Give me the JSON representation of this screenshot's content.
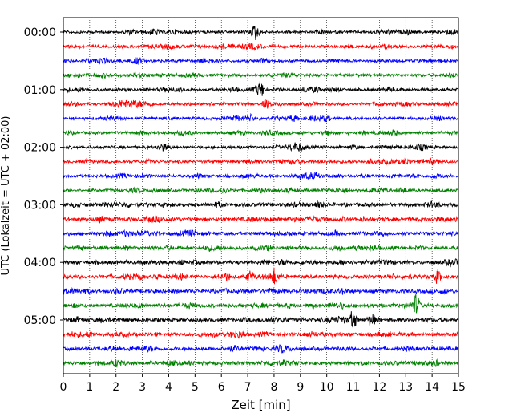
{
  "chart_data": {
    "type": "line",
    "chart_kind": "helicorder / seismogram drum plot",
    "title": "",
    "xlabel": "Zeit  [min]",
    "ylabel": "UTC (Lokalzeit = UTC + 02:00)",
    "xlim": [
      0,
      15
    ],
    "xticks": [
      0,
      1,
      2,
      3,
      4,
      5,
      6,
      7,
      8,
      9,
      10,
      11,
      12,
      13,
      14,
      15
    ],
    "xtick_labels": [
      "0",
      "1",
      "2",
      "3",
      "4",
      "5",
      "6",
      "7",
      "8",
      "9",
      "10",
      "11",
      "12",
      "13",
      "14",
      "15"
    ],
    "ytick_labels": [
      "00:00",
      "01:00",
      "02:00",
      "03:00",
      "04:00",
      "05:00"
    ],
    "ytick_positions_in_traces": [
      0,
      4,
      8,
      12,
      16,
      20
    ],
    "trace_count": 24,
    "trace_interval_min": 15,
    "trace_colors": [
      "#000000",
      "#ff0000",
      "#0000ff",
      "#008000"
    ],
    "vertical_grid": "dotted",
    "notable_events": [
      {
        "trace": 0,
        "minute": 7.3,
        "amplitude": 1.0
      },
      {
        "trace": 4,
        "minute": 7.5,
        "amplitude": 1.0
      },
      {
        "trace": 5,
        "minute": 7.7,
        "amplitude": 0.6
      },
      {
        "trace": 17,
        "minute": 7.1,
        "amplitude": 0.8
      },
      {
        "trace": 17,
        "minute": 8.0,
        "amplitude": 1.0
      },
      {
        "trace": 17,
        "minute": 14.2,
        "amplitude": 0.8
      },
      {
        "trace": 19,
        "minute": 13.4,
        "amplitude": 1.5
      },
      {
        "trace": 20,
        "minute": 11.0,
        "amplitude": 1.2
      },
      {
        "trace": 20,
        "minute": 11.7,
        "amplitude": 0.8
      }
    ]
  }
}
